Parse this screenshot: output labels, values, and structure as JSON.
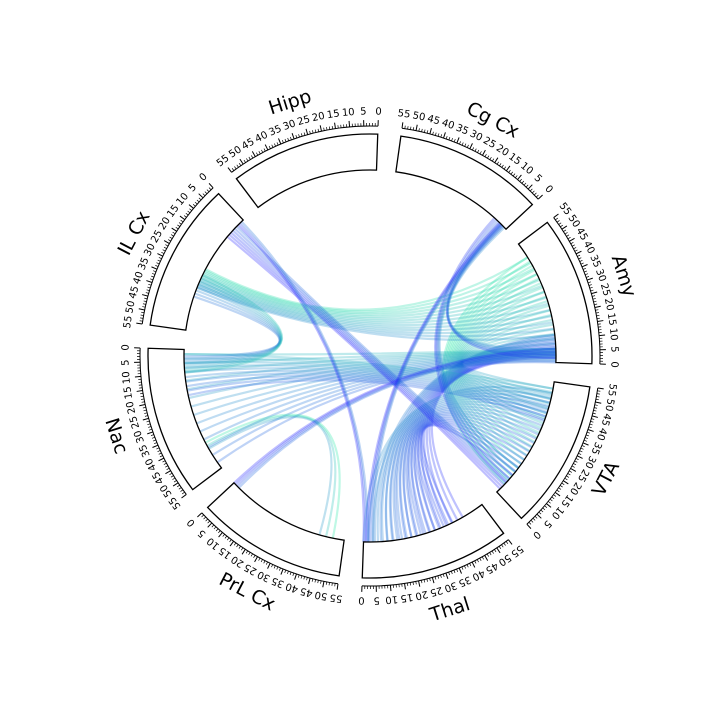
{
  "chart_data": {
    "type": "chord",
    "title": "",
    "colors": {
      "low": "#1a1aff",
      "high": "#19e6a1",
      "outline": "#000000"
    },
    "tick_step": 5,
    "sectors": [
      {
        "name": "Amy",
        "min": 0,
        "max": 55
      },
      {
        "name": "Cg Cx",
        "min": 0,
        "max": 55
      },
      {
        "name": "Hipp",
        "min": 0,
        "max": 55
      },
      {
        "name": "IL Cx",
        "min": 0,
        "max": 55
      },
      {
        "name": "Nac",
        "min": 0,
        "max": 55
      },
      {
        "name": "PrL Cx",
        "min": 0,
        "max": 55
      },
      {
        "name": "Thal",
        "min": 0,
        "max": 55
      },
      {
        "name": "VTA",
        "min": 0,
        "max": 55
      }
    ],
    "links": [
      {
        "source": "Amy",
        "source_range": [
          4,
          48
        ],
        "target": "VTA",
        "target_range": [
          5,
          52
        ],
        "color_level": 0.85,
        "n_lines": 22
      },
      {
        "source": "Amy",
        "source_range": [
          2,
          12
        ],
        "target": "Thal",
        "target_range": [
          5,
          45
        ],
        "color_level": 0.25,
        "n_lines": 16
      },
      {
        "source": "Amy",
        "source_range": [
          0,
          6
        ],
        "target": "Nac",
        "target_range": [
          2,
          52
        ],
        "color_level": 0.55,
        "n_lines": 14
      },
      {
        "source": "Amy",
        "source_range": [
          12,
          48
        ],
        "target": "IL Cx",
        "target_range": [
          27,
          36
        ],
        "color_level": 0.75,
        "n_lines": 14
      },
      {
        "source": "Amy",
        "source_range": [
          2,
          6
        ],
        "target": "Cg Cx",
        "target_range": [
          1,
          3
        ],
        "color_level": 0.3,
        "n_lines": 4
      },
      {
        "source": "VTA",
        "source_range": [
          10,
          50
        ],
        "target": "Thal",
        "target_range": [
          0,
          40
        ],
        "color_level": 0.35,
        "n_lines": 20
      },
      {
        "source": "VTA",
        "source_range": [
          38,
          52
        ],
        "target": "Nac",
        "target_range": [
          2,
          20
        ],
        "color_level": 0.5,
        "n_lines": 10
      },
      {
        "source": "VTA",
        "source_range": [
          2,
          8
        ],
        "target": "IL Cx",
        "target_range": [
          4,
          10
        ],
        "color_level": 0.15,
        "n_lines": 6
      },
      {
        "source": "VTA",
        "source_range": [
          6,
          14
        ],
        "target": "Cg Cx",
        "target_range": [
          3,
          7
        ],
        "color_level": 0.3,
        "n_lines": 5
      },
      {
        "source": "Nac",
        "source_range": [
          3,
          10
        ],
        "target": "IL Cx",
        "target_range": [
          30,
          40
        ],
        "color_level": 0.6,
        "n_lines": 8
      },
      {
        "source": "PrL Cx",
        "source_range": [
          44,
          50
        ],
        "target": "Nac",
        "target_range": [
          42,
          45
        ],
        "color_level": 0.8,
        "n_lines": 3
      },
      {
        "source": "PrL Cx",
        "source_range": [
          0,
          3
        ],
        "target": "Amy",
        "target_range": [
          3,
          6
        ],
        "color_level": 0.15,
        "n_lines": 4
      },
      {
        "source": "Thal",
        "source_range": [
          1,
          4
        ],
        "target": "Cg Cx",
        "target_range": [
          2,
          4
        ],
        "color_level": 0.2,
        "n_lines": 4
      },
      {
        "source": "Thal",
        "source_range": [
          0,
          2
        ],
        "target": "IL Cx",
        "target_range": [
          1,
          3
        ],
        "color_level": 0.2,
        "n_lines": 3
      }
    ]
  }
}
